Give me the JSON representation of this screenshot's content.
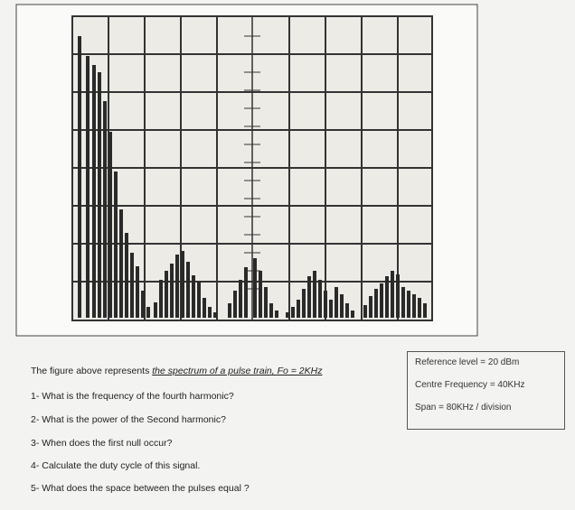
{
  "intro": {
    "text": "The figure above represents",
    "emphasis": "the spectrum of a pulse train, Fo = 2KHz"
  },
  "questions": [
    "1- What is the frequency of the fourth harmonic?",
    "2- What is the power of the Second harmonic?",
    "3- When does the first null occur?",
    "4- Calculate the duty cycle of this signal.",
    "5- What does the space between the pulses equal ?"
  ],
  "settings": [
    "Reference level = 20 dBm",
    "Centre Frequency = 40KHz",
    "Span = 80KHz / division"
  ]
}
